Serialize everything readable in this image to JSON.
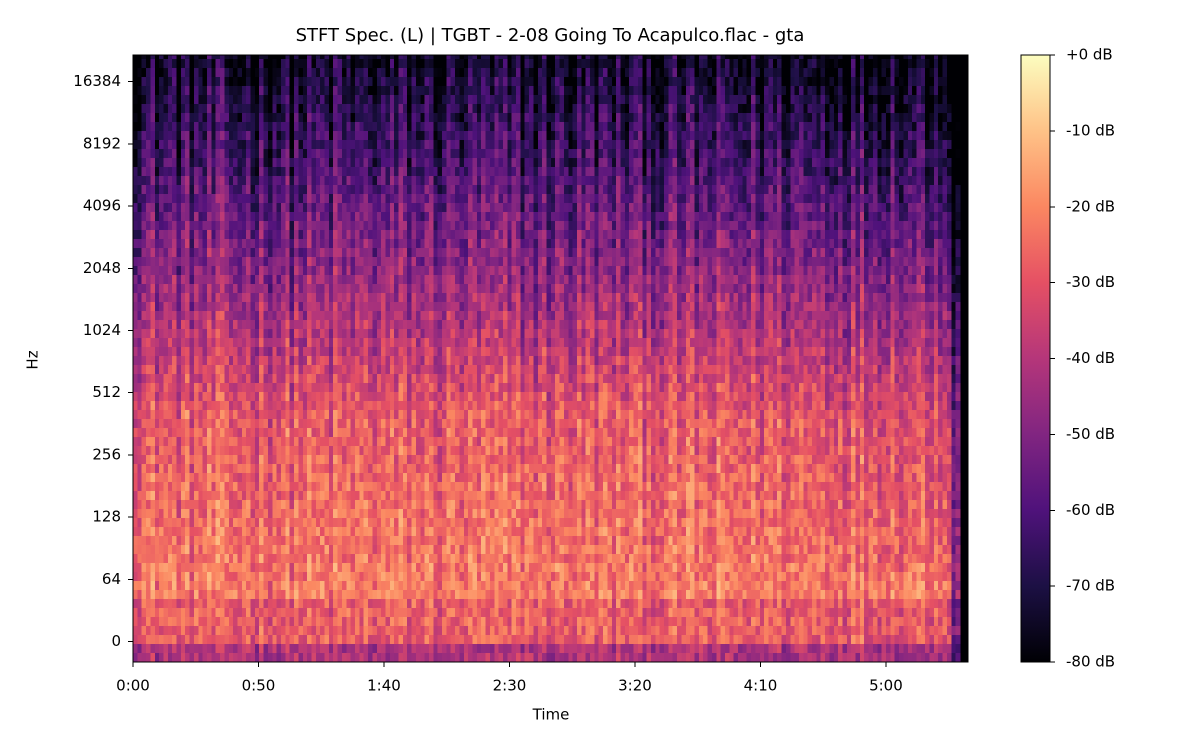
{
  "chart_data": {
    "type": "spectrogram",
    "title": "STFT Spec. (L) | TGBT - 2-08 Going To Acapulco.flac - gta",
    "x_label": "Time",
    "y_label": "Hz",
    "xlim": [
      0,
      332.7
    ],
    "xticks": [
      {
        "value": 0,
        "label": "0:00"
      },
      {
        "value": 50,
        "label": "0:50"
      },
      {
        "value": 100,
        "label": "1:40"
      },
      {
        "value": 150,
        "label": "2:30"
      },
      {
        "value": 200,
        "label": "3:20"
      },
      {
        "value": 250,
        "label": "4:10"
      },
      {
        "value": 300,
        "label": "5:00"
      }
    ],
    "yscale": "symlog",
    "linthresh": 64,
    "ylim": [
      -21,
      22050
    ],
    "yticks": [
      0,
      64,
      128,
      256,
      512,
      1024,
      2048,
      4096,
      8192,
      16384
    ],
    "colormap": "magma",
    "clim": [
      -80,
      0
    ],
    "colorbar_ticks": [
      {
        "value": 0,
        "label": "+0 dB"
      },
      {
        "value": -10,
        "label": "-10 dB"
      },
      {
        "value": -20,
        "label": "-20 dB"
      },
      {
        "value": -30,
        "label": "-30 dB"
      },
      {
        "value": -40,
        "label": "-40 dB"
      },
      {
        "value": -50,
        "label": "-50 dB"
      },
      {
        "value": -60,
        "label": "-60 dB"
      },
      {
        "value": -70,
        "label": "-70 dB"
      },
      {
        "value": -80,
        "label": "-80 dB"
      }
    ]
  }
}
